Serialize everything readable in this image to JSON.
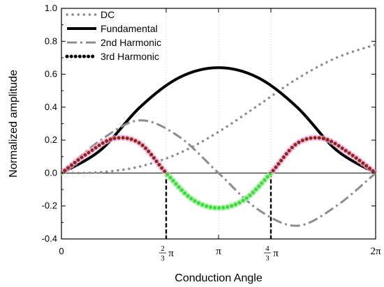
{
  "chart_data": {
    "type": "line",
    "title": "",
    "xlabel": "Conduction Angle",
    "ylabel": "Normalized amplitude",
    "xlim": [
      0,
      6.2832
    ],
    "ylim": [
      -0.4,
      1.0
    ],
    "yticks": [
      "-0.4",
      "-0.2",
      "0.0",
      "0.2",
      "0.4",
      "0.6",
      "0.8",
      "1.0"
    ],
    "xticks": [
      {
        "value": 0,
        "label": "0"
      },
      {
        "value": 2.0944,
        "label": "2/3π",
        "num": "2",
        "den": "3",
        "sym": "π"
      },
      {
        "value": 3.1416,
        "label": "π"
      },
      {
        "value": 4.1888,
        "label": "4/3π",
        "num": "4",
        "den": "3",
        "sym": "π"
      },
      {
        "value": 6.2832,
        "label": "2π"
      }
    ],
    "legend_position": "top-left",
    "grid": "vertical dotted",
    "series": [
      {
        "name": "DC",
        "style": "dot",
        "color": "#8c8c8c",
        "x": [
          0,
          0.7854,
          1.5708,
          2.3562,
          3.1416,
          3.927,
          4.7124,
          5.4978,
          6.2832
        ],
        "y": [
          0,
          0.0054,
          0.0398,
          0.1208,
          0.25,
          0.4096,
          0.5724,
          0.7,
          0.78
        ]
      },
      {
        "name": "Fundamental",
        "style": "solid",
        "color": "#000000",
        "x": [
          0,
          0.7854,
          1.5708,
          2.3562,
          3.1416,
          3.927,
          4.7124,
          5.4978,
          6.2832
        ],
        "y": [
          0,
          0.14,
          0.4,
          0.58,
          0.64,
          0.58,
          0.4,
          0.14,
          0
        ]
      },
      {
        "name": "2nd Harmonic",
        "style": "dashdot",
        "color": "#8c8c8c",
        "x": [
          0,
          0.7854,
          1.5708,
          2.3562,
          3.1416,
          3.927,
          4.7124,
          5.4978,
          6.2832
        ],
        "y": [
          0,
          0.2,
          0.32,
          0.22,
          0,
          -0.22,
          -0.32,
          -0.2,
          0
        ]
      },
      {
        "name": "3rd Harmonic",
        "style": "bigdot",
        "color": "#000000",
        "x": [
          0,
          0.5236,
          1.0472,
          1.5708,
          2.0944,
          2.618,
          3.1416,
          3.6652,
          4.1888,
          4.7124,
          5.236,
          5.7596,
          6.2832
        ],
        "y": [
          0,
          0.12,
          0.21,
          0.18,
          0,
          -0.16,
          -0.212,
          -0.16,
          0,
          0.18,
          0.21,
          0.12,
          0
        ]
      }
    ],
    "annotations": [
      {
        "type": "vline-dashed",
        "x": 2.0944,
        "from": -0.4,
        "to": 0
      },
      {
        "type": "vline-dashed",
        "x": 4.1888,
        "from": -0.4,
        "to": 0
      }
    ],
    "colors": {
      "third_pos_glow": "#f2a6e6",
      "third_pos_dot": "#8b2a10",
      "third_neg_glow": "#a6f0a6",
      "third_neg_dot": "#3fd93f"
    }
  }
}
